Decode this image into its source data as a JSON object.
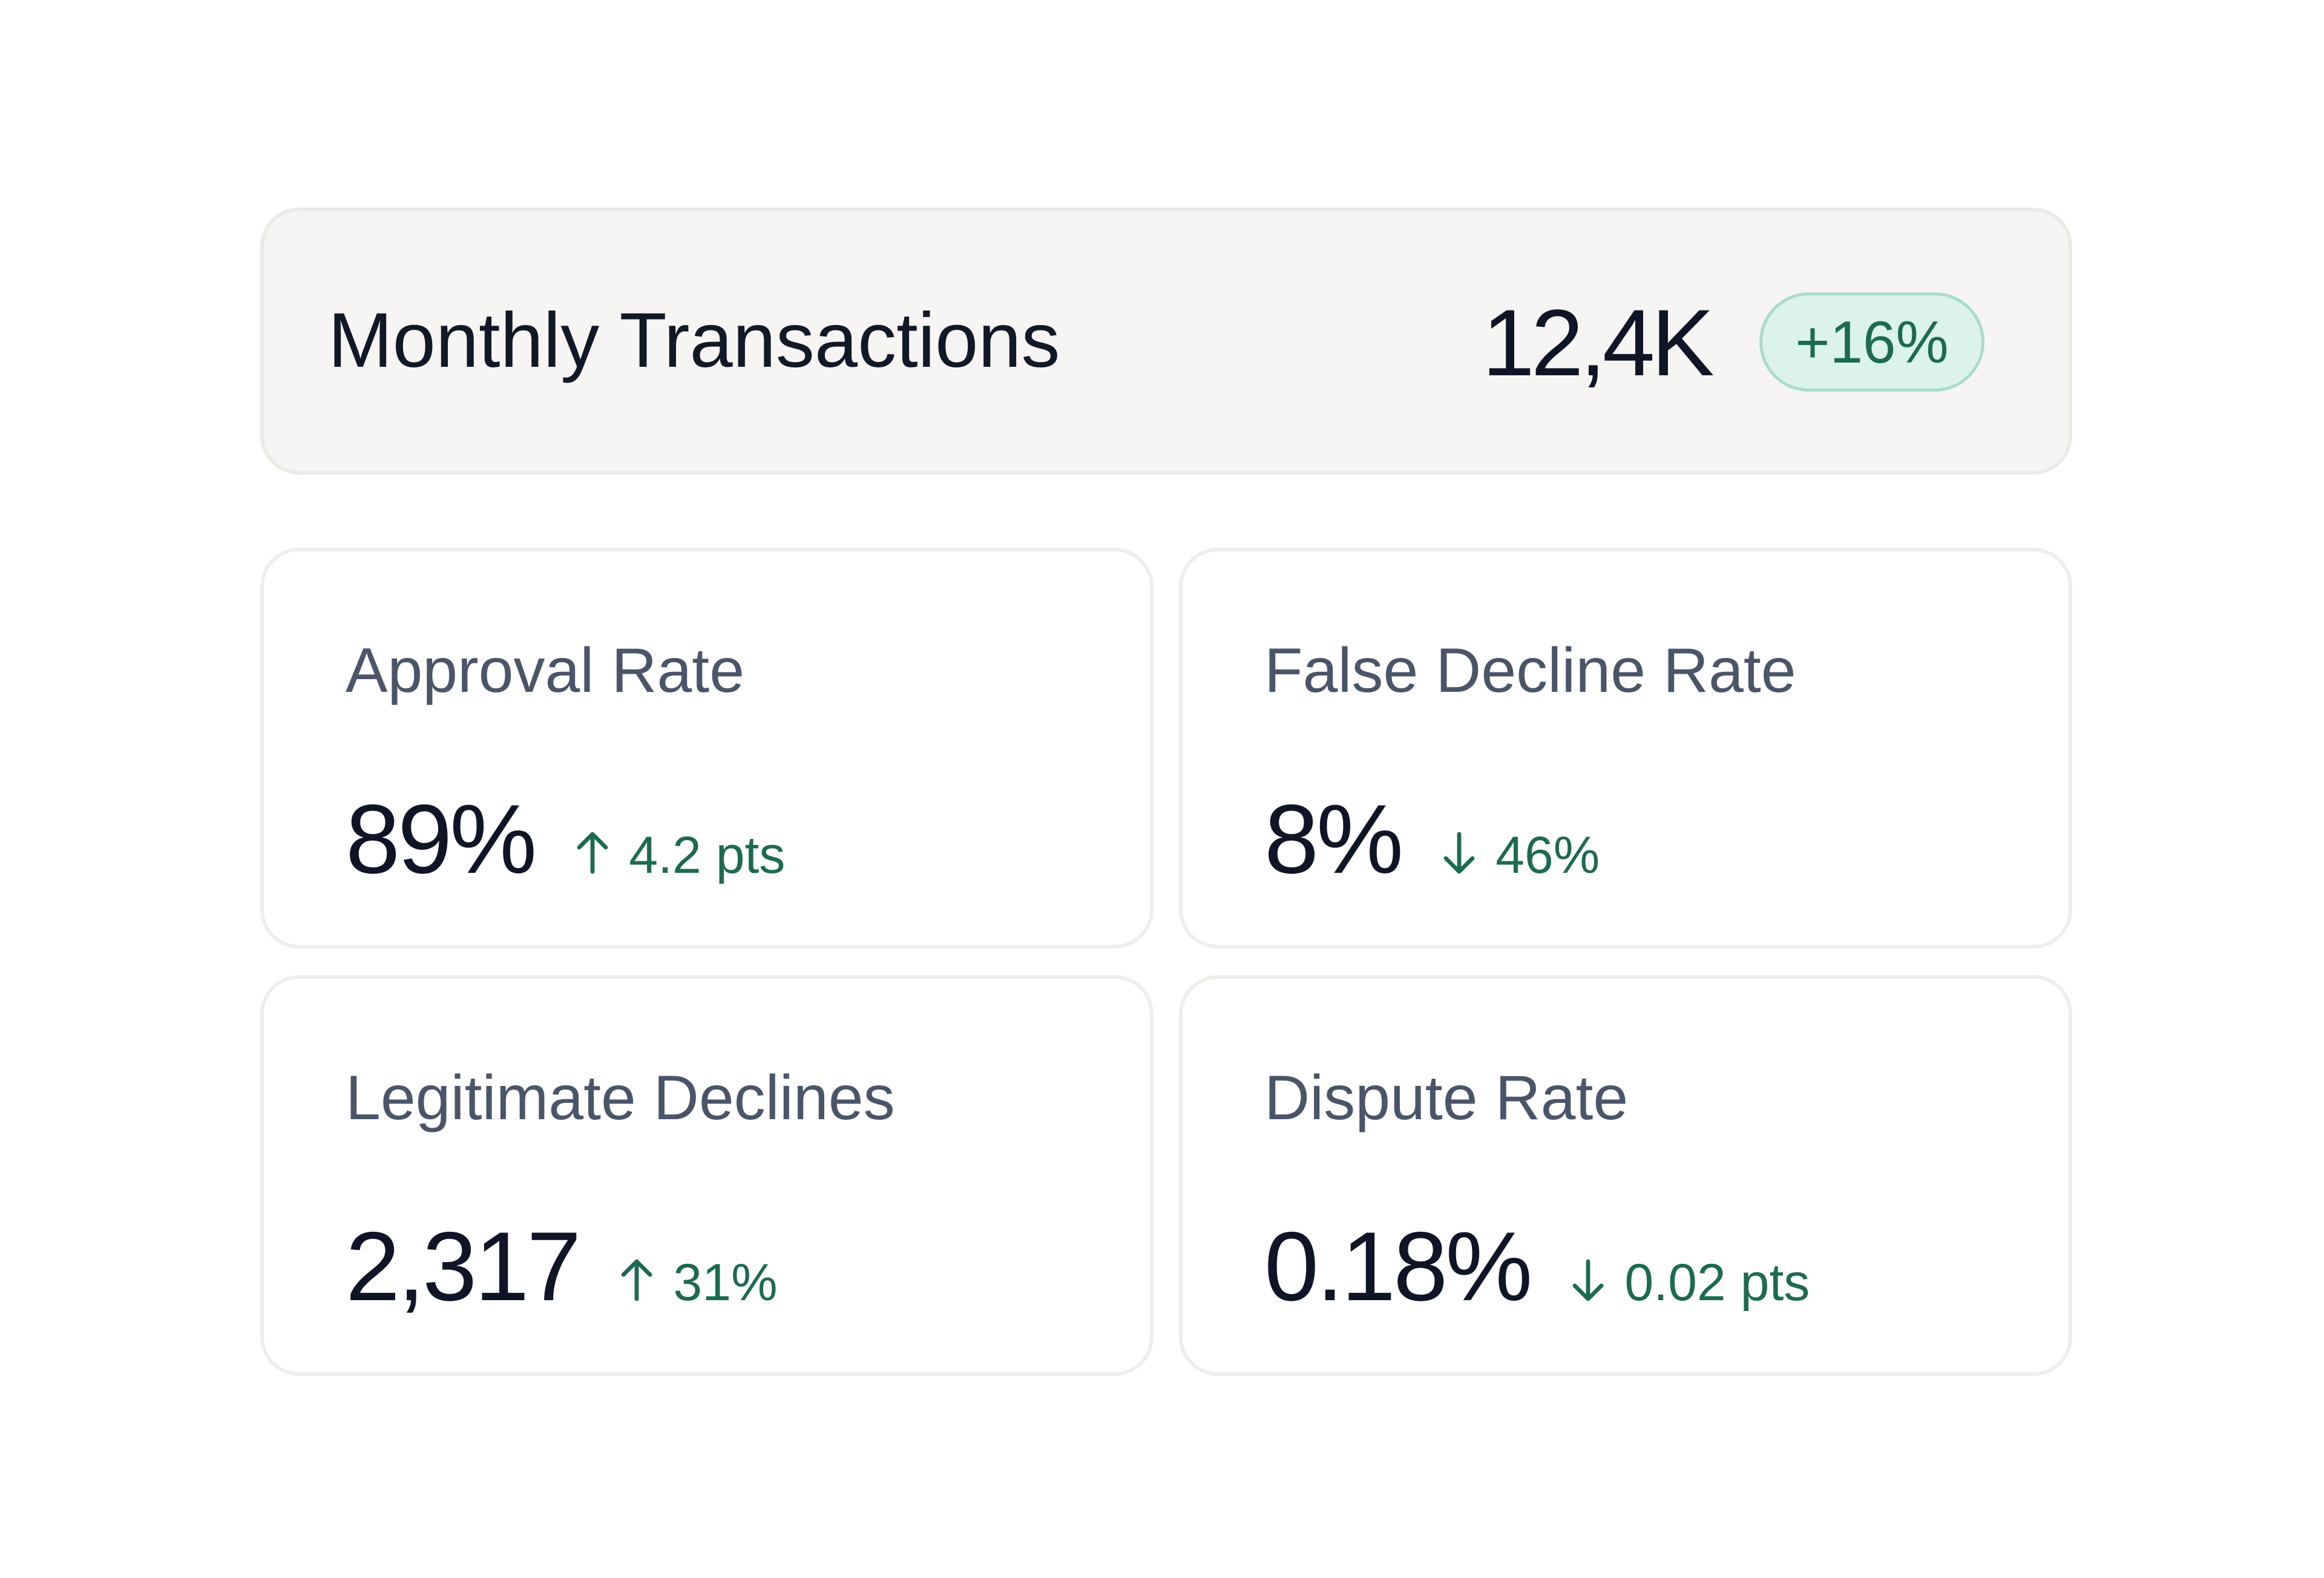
{
  "header": {
    "title": "Monthly Transactions",
    "value": "12,4K",
    "badge": "+16%"
  },
  "colors": {
    "positive": "#1d6a52",
    "badge_bg": "#dbf3ea",
    "text_primary": "#0f1526",
    "text_secondary": "#4b5569"
  },
  "metrics": [
    {
      "label": "Approval Rate",
      "value": "89%",
      "delta_direction_icon": "arrow-up-icon",
      "delta": "4.2 pts"
    },
    {
      "label": "False Decline Rate",
      "value": "8%",
      "delta_direction_icon": "arrow-down-icon",
      "delta": "46%"
    },
    {
      "label": "Legitimate Declines",
      "value": "2,317",
      "delta_direction_icon": "arrow-up-icon",
      "delta": "31%"
    },
    {
      "label": "Dispute Rate",
      "value": "0.18%",
      "delta_direction_icon": "arrow-down-icon",
      "delta": "0.02 pts"
    }
  ]
}
